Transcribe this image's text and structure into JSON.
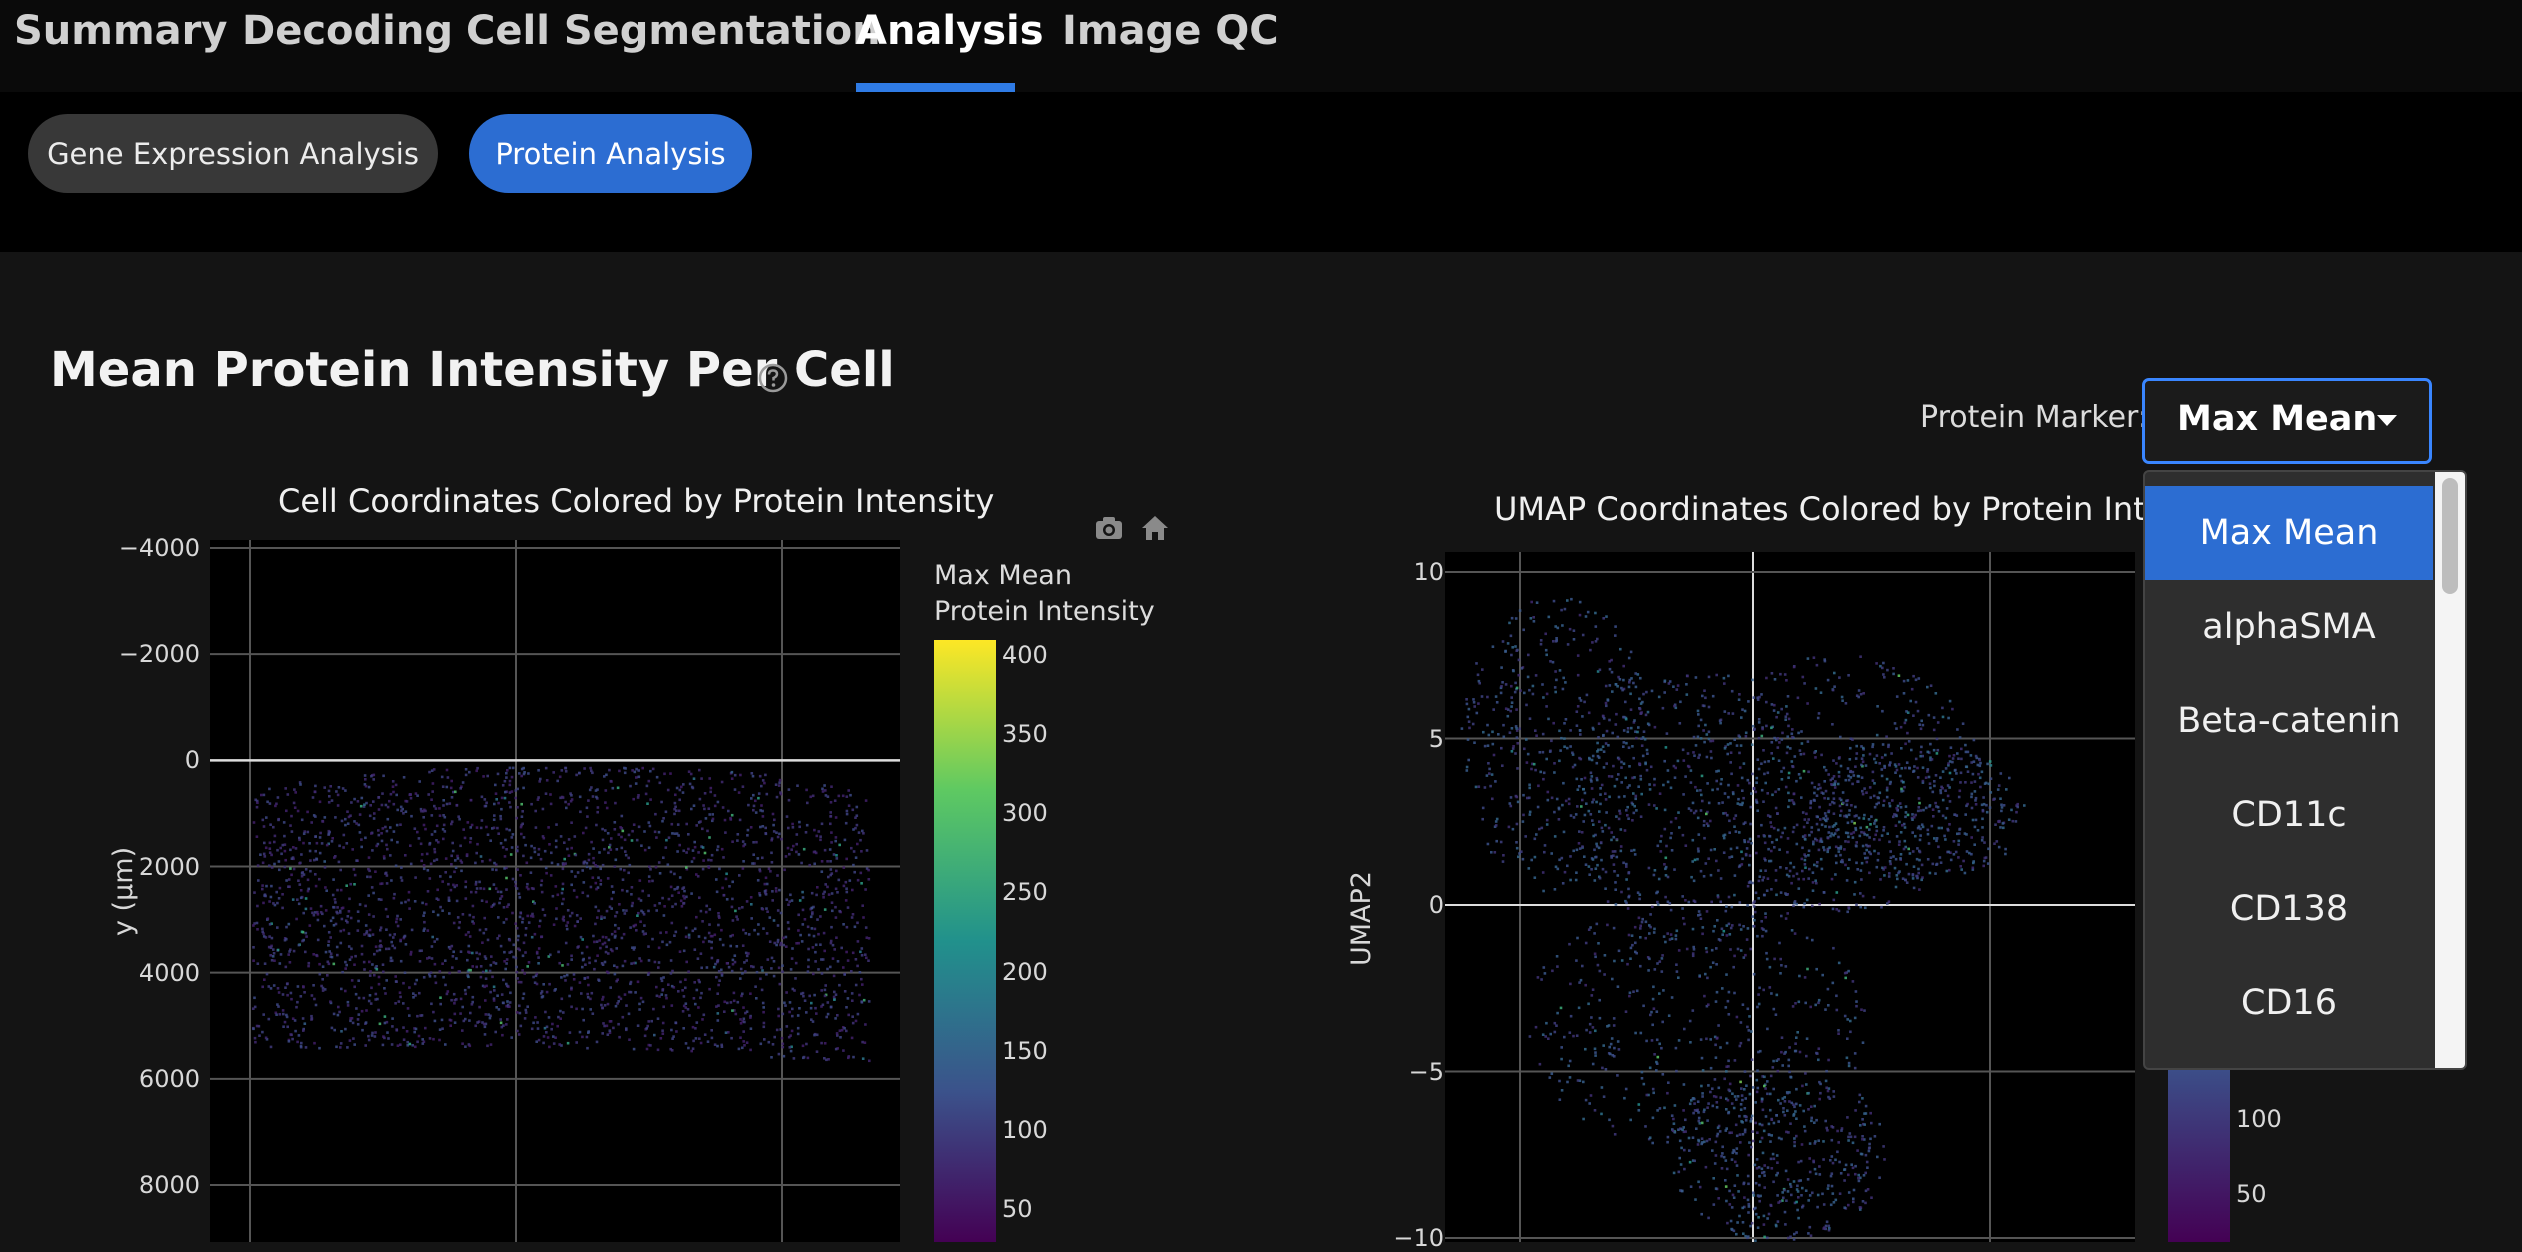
{
  "nav_tabs": [
    {
      "label": "Summary",
      "active": false
    },
    {
      "label": "Decoding",
      "active": false
    },
    {
      "label": "Cell Segmentation",
      "active": false
    },
    {
      "label": "Analysis",
      "active": true
    },
    {
      "label": "Image QC",
      "active": false
    }
  ],
  "subtabs": [
    {
      "label": "Gene Expression Analysis",
      "active": false
    },
    {
      "label": "Protein Analysis",
      "active": true
    }
  ],
  "section": {
    "title": "Mean Protein Intensity Per Cell",
    "help_icon": "question-circle-icon"
  },
  "protein_marker": {
    "label": "Protein Marker:",
    "selected": "Max Mean",
    "options": [
      "Max Mean",
      "alphaSMA",
      "Beta-catenin",
      "CD11c",
      "CD138",
      "CD16"
    ]
  },
  "colors": {
    "accent": "#2f7be5",
    "pill_active": "#2c6dd2",
    "pill_inactive": "#383838",
    "colorscale": [
      "#440154",
      "#3b528b",
      "#21918c",
      "#5ec962",
      "#fde725"
    ]
  },
  "modebar_icons": [
    "camera-icon",
    "home-icon"
  ],
  "chart_data": [
    {
      "type": "scatter",
      "title": "Cell Coordinates Colored by Protein Intensity",
      "xlabel": "",
      "ylabel": "y (µm)",
      "y_reversed": true,
      "y_ticks": [
        "−4000",
        "−2000",
        "0",
        "2000",
        "4000",
        "6000",
        "8000"
      ],
      "y_tick_values": [
        -4000,
        -2000,
        0,
        2000,
        4000,
        6000,
        8000
      ],
      "ylim": [
        -4000,
        9000
      ],
      "data_extent": {
        "y": [
          0,
          5500
        ],
        "dominant_intensity": [
          60,
          120
        ]
      },
      "grid": true,
      "colorbar": {
        "title": [
          "Max Mean",
          "Protein Intensity"
        ],
        "ticks": [
          "400",
          "350",
          "300",
          "250",
          "200",
          "150",
          "100",
          "50"
        ],
        "tick_values": [
          400,
          350,
          300,
          250,
          200,
          150,
          100,
          50
        ],
        "range": [
          30,
          410
        ]
      }
    },
    {
      "type": "scatter",
      "title": "UMAP Coordinates Colored by Protein Inten",
      "xlabel": "",
      "ylabel": "UMAP2",
      "y_ticks": [
        "10",
        "5",
        "0",
        "−5",
        "−10"
      ],
      "y_tick_values": [
        10,
        5,
        0,
        -5,
        -10
      ],
      "ylim": [
        -10,
        10
      ],
      "grid": true,
      "colorbar": {
        "ticks": [
          "100",
          "50"
        ],
        "tick_values": [
          100,
          50
        ]
      }
    }
  ]
}
